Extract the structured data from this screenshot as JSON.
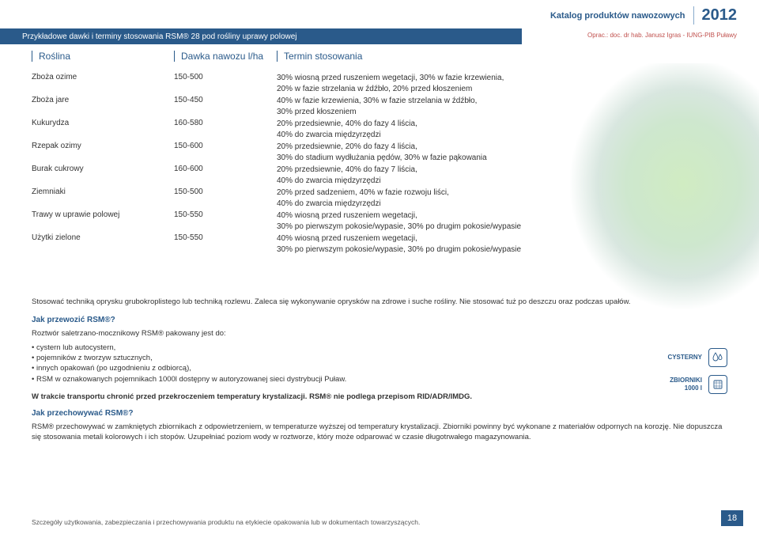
{
  "header": {
    "catalog": "Katalog produktów nawozowych",
    "year": "2012",
    "banner": "Przykładowe dawki i terminy stosowania RSM® 28 pod rośliny uprawy polowej",
    "credit": "Oprac.: doc. dr hab. Janusz Igras - IUNG-PIB Puławy"
  },
  "columns": {
    "crop": "Roślina",
    "dose": "Dawka nawozu l/ha",
    "timing": "Termin stosowania"
  },
  "rows": [
    {
      "crop": "Zboża ozime",
      "dose": "150-500",
      "timing": [
        "30% wiosną przed ruszeniem wegetacji, 30% w fazie krzewienia,",
        "20% w fazie strzelania w źdźbło, 20% przed kłoszeniem"
      ]
    },
    {
      "crop": "Zboża jare",
      "dose": "150-450",
      "timing": [
        "40% w fazie krzewienia, 30% w fazie strzelania w źdźbło,",
        "30% przed kłoszeniem"
      ]
    },
    {
      "crop": "Kukurydza",
      "dose": "160-580",
      "timing": [
        "20% przedsiewnie, 40% do fazy 4 liścia,",
        "40% do zwarcia międzyrzędzi"
      ]
    },
    {
      "crop": "Rzepak ozimy",
      "dose": "150-600",
      "timing": [
        "20% przedsiewnie, 20% do fazy 4 liścia,",
        "30% do stadium wydłużania pędów, 30% w fazie pąkowania"
      ]
    },
    {
      "crop": "Burak cukrowy",
      "dose": "160-600",
      "timing": [
        "20% przedsiewnie, 40% do fazy 7 liścia,",
        "40% do zwarcia międzyrzędzi"
      ]
    },
    {
      "crop": "Ziemniaki",
      "dose": "150-500",
      "timing": [
        "20% przed sadzeniem, 40% w fazie rozwoju liści,",
        "40% do zwarcia międzyrzędzi"
      ]
    },
    {
      "crop": "Trawy w uprawie polowej",
      "dose": "150-550",
      "timing": [
        "40% wiosną przed ruszeniem wegetacji,",
        "30% po pierwszym pokosie/wypasie, 30% po drugim pokosie/wypasie"
      ]
    },
    {
      "crop": "Użytki zielone",
      "dose": "150-550",
      "timing": [
        "40% wiosną przed ruszeniem wegetacji,",
        "30% po pierwszym pokosie/wypasie, 30% po drugim pokosie/wypasie"
      ]
    }
  ],
  "usage_note": "Stosować techniką oprysku grubokroplistego lub techniką rozlewu. Zaleca się wykonywanie oprysków na zdrowe i suche rośliny. Nie stosować tuż po deszczu oraz podczas upałów.",
  "transport": {
    "title": "Jak przewozić RSM®?",
    "intro": "Roztwór saletrzano-mocznikowy RSM® pakowany jest do:",
    "bullets": [
      "• cystern lub autocystern,",
      "• pojemników z tworzyw sztucznych,",
      "• innych opakowań (po uzgodnieniu z odbiorcą),",
      "• RSM w oznakowanych pojemnikach 1000l dostępny w autoryzowanej sieci dystrybucji Puław."
    ],
    "bold": "W trakcie transportu chronić przed przekroczeniem temperatury krystalizacji. RSM® nie podlega przepisom RID/ADR/IMDG.",
    "label_cysterny": "CYSTERNY",
    "label_zbiorniki": "ZBIORNIKI",
    "label_1000l": "1000 l"
  },
  "storage": {
    "title": "Jak przechowywać RSM®?",
    "text": "RSM® przechowywać w zamkniętych zbiornikach z odpowietrzeniem, w temperaturze wyższej od temperatury krystalizacji. Zbiorniki powinny być wykonane z materiałów odpornych na korozję. Nie dopuszcza się stosowania metali kolorowych i ich stopów. Uzupełniać poziom wody w roztworze, który może odparować w czasie długotrwałego magazynowania."
  },
  "footer": "Szczegóły użytkowania, zabezpieczania i przechowywania produktu na etykiecie opakowania lub w dokumentach towarzyszących.",
  "page": "18"
}
